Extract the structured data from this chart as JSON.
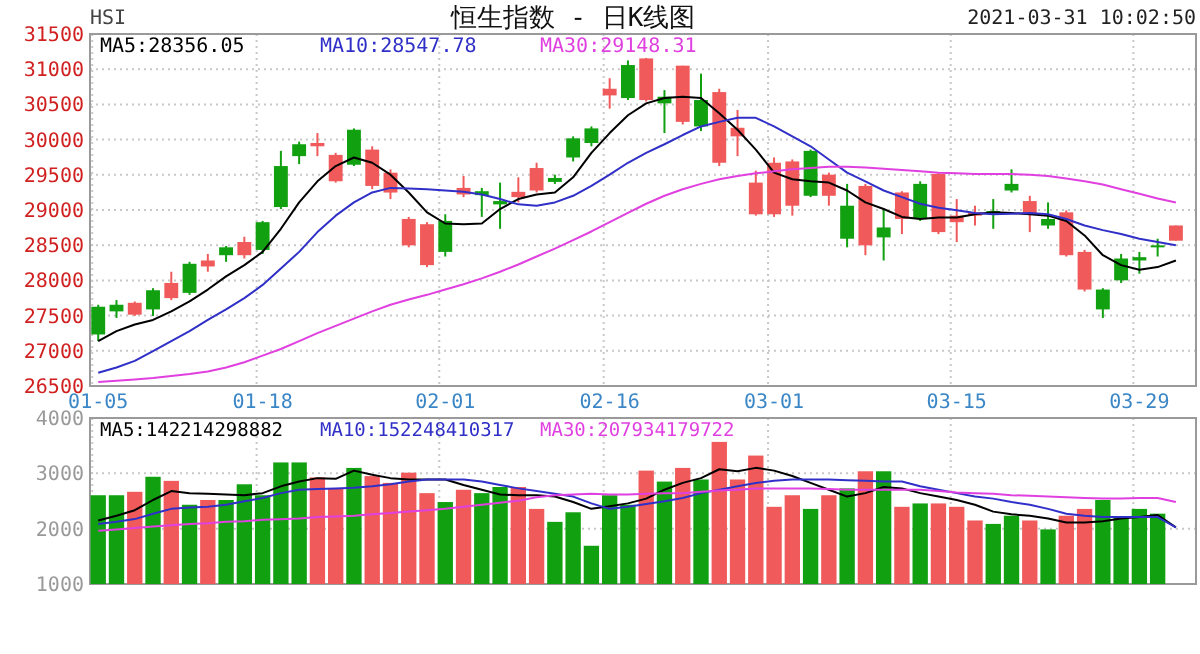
{
  "chart_data": [
    {
      "type": "candlestick",
      "title": "恒生指数 - 日K线图",
      "ylabel": "HSI",
      "annotations": [
        "2021-03-31 10:02:50"
      ],
      "categories": [
        "01-05",
        null,
        null,
        null,
        null,
        null,
        null,
        null,
        null,
        "01-18",
        null,
        null,
        null,
        null,
        null,
        null,
        null,
        null,
        null,
        "02-01",
        null,
        null,
        null,
        null,
        null,
        null,
        null,
        null,
        "02-16",
        null,
        null,
        null,
        null,
        null,
        null,
        null,
        null,
        "03-01",
        null,
        null,
        null,
        null,
        null,
        null,
        null,
        null,
        null,
        "03-15",
        null,
        null,
        null,
        null,
        null,
        null,
        null,
        null,
        null,
        "03-29",
        null,
        null
      ],
      "ylim": [
        26500,
        31500
      ],
      "yticks": [
        26500,
        27000,
        27500,
        28000,
        28500,
        29000,
        29500,
        30000,
        30500,
        31000,
        31500
      ],
      "grid": true,
      "legend": "top left",
      "marker": "none",
      "line_style": "solid",
      "ohlc": [
        [
          27626,
          27654,
          27138,
          27232
        ],
        [
          27654,
          27720,
          27467,
          27560
        ],
        [
          27513,
          27701,
          27495,
          27682
        ],
        [
          27860,
          27889,
          27495,
          27588
        ],
        [
          27748,
          28123,
          27720,
          27964
        ],
        [
          28236,
          28264,
          27795,
          27823
        ],
        [
          28198,
          28376,
          28123,
          28283
        ],
        [
          28470,
          28489,
          28264,
          28358
        ],
        [
          28358,
          28620,
          28311,
          28545
        ],
        [
          28827,
          28845,
          28376,
          28433
        ],
        [
          29624,
          29840,
          29014,
          29042
        ],
        [
          29934,
          29971,
          29652,
          29765
        ],
        [
          29905,
          30093,
          29765,
          29952
        ],
        [
          29408,
          29812,
          29389,
          29783
        ],
        [
          30140,
          30159,
          29624,
          29643
        ],
        [
          29342,
          29905,
          29296,
          29858
        ],
        [
          29248,
          29577,
          29155,
          29530
        ],
        [
          28498,
          28902,
          28470,
          28873
        ],
        [
          28217,
          28827,
          28189,
          28798
        ],
        [
          28845,
          28939,
          28339,
          28405
        ],
        [
          29221,
          29483,
          29183,
          29314
        ],
        [
          29267,
          29314,
          28902,
          29211
        ],
        [
          29127,
          29389,
          28733,
          29080
        ],
        [
          29183,
          29464,
          29108,
          29258
        ],
        [
          29277,
          29671,
          29249,
          29596
        ],
        [
          29455,
          29502,
          29370,
          29399
        ],
        [
          30018,
          30046,
          29690,
          29746
        ],
        [
          30159,
          30187,
          29905,
          29952
        ],
        [
          30628,
          30872,
          30440,
          30722
        ],
        [
          31059,
          31125,
          30562,
          30590
        ],
        [
          30562,
          31160,
          30540,
          31153
        ],
        [
          30609,
          30703,
          30093,
          30515
        ],
        [
          30252,
          31050,
          30215,
          31050
        ],
        [
          30562,
          30937,
          30121,
          30187
        ],
        [
          29671,
          30722,
          29624,
          30675
        ],
        [
          30046,
          30421,
          29765,
          30168
        ],
        [
          28939,
          29558,
          28920,
          29389
        ],
        [
          28939,
          29746,
          28902,
          29671
        ],
        [
          29061,
          29718,
          28920,
          29690
        ],
        [
          29840,
          29858,
          29183,
          29202
        ],
        [
          29202,
          29530,
          29061,
          29502
        ],
        [
          29061,
          29371,
          28470,
          28592
        ],
        [
          28498,
          29371,
          28358,
          29342
        ],
        [
          28752,
          29014,
          28283,
          28611
        ],
        [
          28873,
          29267,
          28658,
          29249
        ],
        [
          29371,
          29408,
          28845,
          28873
        ],
        [
          28686,
          29530,
          28658,
          29511
        ],
        [
          28827,
          29155,
          28545,
          28920
        ],
        [
          28920,
          29061,
          28780,
          28967
        ],
        [
          28986,
          29155,
          28733,
          28939
        ],
        [
          29371,
          29577,
          29249,
          29277
        ],
        [
          28939,
          29202,
          28686,
          29127
        ],
        [
          28873,
          29108,
          28733,
          28780
        ],
        [
          28358,
          28995,
          28339,
          28967
        ],
        [
          27870,
          28433,
          27842,
          28405
        ],
        [
          27870,
          27889,
          27467,
          27588
        ],
        [
          28311,
          28376,
          27964,
          28001
        ],
        [
          28330,
          28405,
          28095,
          28283
        ],
        [
          28498,
          28592,
          28339,
          28470
        ],
        [
          28564,
          28780,
          28564,
          28780
        ]
      ],
      "colors": [
        "#10a010",
        "#10a010",
        "#f05a5a",
        "#10a010",
        "#f05a5a",
        "#10a010",
        "#f05a5a",
        "#10a010",
        "#f05a5a",
        "#10a010",
        "#10a010",
        "#10a010",
        "#f05a5a",
        "#f05a5a",
        "#10a010",
        "#f05a5a",
        "#f05a5a",
        "#f05a5a",
        "#f05a5a",
        "#10a010",
        "#f05a5a",
        "#10a010",
        "#10a010",
        "#f05a5a",
        "#f05a5a",
        "#10a010",
        "#10a010",
        "#10a010",
        "#f05a5a",
        "#10a010",
        "#f05a5a",
        "#10a010",
        "#f05a5a",
        "#10a010",
        "#f05a5a",
        "#f05a5a",
        "#f05a5a",
        "#f05a5a",
        "#f05a5a",
        "#10a010",
        "#f05a5a",
        "#10a010",
        "#f05a5a",
        "#10a010",
        "#f05a5a",
        "#10a010",
        "#f05a5a",
        "#f05a5a",
        "#f05a5a",
        "#10a010",
        "#10a010",
        "#f05a5a",
        "#10a010",
        "#f05a5a",
        "#f05a5a",
        "#10a010",
        "#10a010",
        "#10a010",
        "#10a010",
        "#f05a5a"
      ],
      "series": [
        {
          "type": "line",
          "name": "MA5:28356.05",
          "color": "#000000",
          "values": [
            27138,
            27279,
            27373,
            27438,
            27560,
            27701,
            27870,
            28057,
            28217,
            28405,
            28733,
            29108,
            29408,
            29624,
            29746,
            29671,
            29502,
            29249,
            28967,
            28808,
            28798,
            28808,
            29014,
            29155,
            29221,
            29249,
            29464,
            29812,
            30093,
            30346,
            30515,
            30590,
            30609,
            30590,
            30374,
            30140,
            29858,
            29530,
            29436,
            29408,
            29389,
            29277,
            29108,
            29014,
            28902,
            28873,
            28892,
            28892,
            28939,
            28967,
            28958,
            28939,
            28920,
            28845,
            28639,
            28358,
            28217,
            28151,
            28189,
            28283
          ]
        },
        {
          "type": "line",
          "name": "MA10:28547.78",
          "color": "#3030c8",
          "values": [
            26688,
            26763,
            26857,
            26997,
            27138,
            27279,
            27438,
            27588,
            27748,
            27936,
            28170,
            28405,
            28686,
            28920,
            29108,
            29249,
            29314,
            29305,
            29295,
            29277,
            29258,
            29221,
            29155,
            29080,
            29061,
            29108,
            29202,
            29342,
            29502,
            29671,
            29812,
            29934,
            30065,
            30187,
            30252,
            30309,
            30309,
            30187,
            30046,
            29905,
            29718,
            29530,
            29408,
            29277,
            29183,
            29089,
            29033,
            28995,
            28958,
            28939,
            28948,
            28958,
            28939,
            28873,
            28780,
            28714,
            28658,
            28592,
            28545,
            28498
          ]
        },
        {
          "type": "line",
          "name": "MA30:29148.31",
          "color": "#e040e0",
          "values": [
            26557,
            26575,
            26594,
            26613,
            26641,
            26669,
            26707,
            26763,
            26838,
            26932,
            27026,
            27138,
            27251,
            27354,
            27457,
            27560,
            27654,
            27729,
            27795,
            27870,
            27945,
            28029,
            28123,
            28226,
            28339,
            28451,
            28573,
            28695,
            28827,
            28958,
            29089,
            29202,
            29295,
            29371,
            29436,
            29483,
            29521,
            29549,
            29578,
            29596,
            29615,
            29615,
            29605,
            29586,
            29568,
            29549,
            29530,
            29521,
            29511,
            29511,
            29511,
            29502,
            29483,
            29446,
            29408,
            29361,
            29295,
            29230,
            29164,
            29108
          ]
        }
      ]
    },
    {
      "type": "bar",
      "tick_labels": "y",
      "categories": [
        null,
        null,
        null,
        null,
        null,
        null,
        null,
        null,
        null,
        null,
        null,
        null,
        null,
        null,
        null,
        null,
        null,
        null,
        null,
        null,
        null,
        null,
        null,
        null,
        null,
        null,
        null,
        null,
        null,
        null,
        null,
        null,
        null,
        null,
        null,
        null,
        null,
        null,
        null,
        null,
        null,
        null,
        null,
        null,
        null,
        null,
        null,
        null,
        null,
        null,
        null,
        null,
        null,
        null,
        null,
        null,
        null,
        null,
        null,
        null
      ],
      "ylim": [
        1000,
        4000
      ],
      "yticks": [
        1000,
        2000,
        3000,
        4000
      ],
      "grid": true,
      "legend": "top left",
      "marker": "none",
      "line_style": "solid",
      "series": [
        {
          "type": "bar",
          "values": [
            2604,
            2604,
            2666,
            2938,
            2864,
            2432,
            2518,
            2518,
            2802,
            2604,
            3197,
            3197,
            2926,
            2728,
            3098,
            2950,
            2827,
            3012,
            2642,
            2481,
            2703,
            2642,
            2753,
            2753,
            2357,
            2123,
            2296,
            1691,
            2604,
            2432,
            3049,
            2851,
            3098,
            2889,
            3568,
            2889,
            3321,
            2395,
            2604,
            2357,
            2604,
            2728,
            3037,
            3037,
            2395,
            2456,
            2456,
            2395,
            2148,
            2086,
            2234,
            2148,
            1987,
            2234,
            2357,
            2518,
            2209,
            2357,
            2271,
            null
          ],
          "colors": [
            "#10a010",
            "#10a010",
            "#f05a5a",
            "#10a010",
            "#f05a5a",
            "#10a010",
            "#f05a5a",
            "#10a010",
            "#10a010",
            "#10a010",
            "#10a010",
            "#10a010",
            "#f05a5a",
            "#f05a5a",
            "#10a010",
            "#f05a5a",
            "#f05a5a",
            "#f05a5a",
            "#f05a5a",
            "#10a010",
            "#f05a5a",
            "#10a010",
            "#10a010",
            "#f05a5a",
            "#f05a5a",
            "#10a010",
            "#10a010",
            "#10a010",
            "#10a010",
            "#10a010",
            "#f05a5a",
            "#10a010",
            "#f05a5a",
            "#10a010",
            "#f05a5a",
            "#f05a5a",
            "#f05a5a",
            "#f05a5a",
            "#f05a5a",
            "#10a010",
            "#f05a5a",
            "#10a010",
            "#f05a5a",
            "#10a010",
            "#f05a5a",
            "#10a010",
            "#f05a5a",
            "#f05a5a",
            "#f05a5a",
            "#10a010",
            "#10a010",
            "#f05a5a",
            "#10a010",
            "#f05a5a",
            "#f05a5a",
            "#10a010",
            "#10a010",
            "#10a010",
            "#10a010",
            null
          ]
        },
        {
          "type": "line",
          "name": "MA5:142214298882",
          "color": "#000000",
          "values": [
            2148,
            2234,
            2333,
            2518,
            2679,
            2642,
            2629,
            2617,
            2605,
            2642,
            2765,
            2852,
            2913,
            2901,
            3049,
            2975,
            2913,
            2889,
            2889,
            2889,
            2790,
            2704,
            2617,
            2605,
            2605,
            2580,
            2481,
            2358,
            2407,
            2457,
            2543,
            2704,
            2827,
            2913,
            3074,
            3037,
            3099,
            3049,
            2951,
            2827,
            2704,
            2580,
            2642,
            2753,
            2728,
            2642,
            2580,
            2518,
            2432,
            2308,
            2259,
            2234,
            2185,
            2111,
            2111,
            2135,
            2185,
            2210,
            2247,
            2024
          ]
        },
        {
          "type": "line",
          "name": "MA10:152248410317",
          "color": "#3030c8",
          "values": [
            2086,
            2123,
            2173,
            2271,
            2358,
            2382,
            2395,
            2432,
            2494,
            2555,
            2642,
            2704,
            2716,
            2728,
            2741,
            2765,
            2802,
            2852,
            2889,
            2889,
            2889,
            2852,
            2790,
            2728,
            2679,
            2630,
            2580,
            2457,
            2358,
            2395,
            2444,
            2494,
            2555,
            2642,
            2704,
            2765,
            2827,
            2864,
            2889,
            2889,
            2889,
            2876,
            2864,
            2852,
            2852,
            2765,
            2704,
            2642,
            2580,
            2543,
            2481,
            2432,
            2358,
            2271,
            2234,
            2210,
            2210,
            2210,
            2210,
            2024
          ]
        },
        {
          "type": "line",
          "name": "MA30:207934179722",
          "color": "#e040e0",
          "values": [
            1963,
            1987,
            2012,
            2037,
            2061,
            2086,
            2098,
            2123,
            2135,
            2160,
            2172,
            2185,
            2209,
            2222,
            2234,
            2259,
            2284,
            2309,
            2333,
            2358,
            2395,
            2432,
            2469,
            2506,
            2568,
            2605,
            2617,
            2630,
            2617,
            2617,
            2630,
            2642,
            2642,
            2667,
            2691,
            2704,
            2728,
            2728,
            2728,
            2728,
            2716,
            2704,
            2704,
            2704,
            2704,
            2704,
            2679,
            2654,
            2642,
            2630,
            2605,
            2593,
            2580,
            2568,
            2556,
            2543,
            2543,
            2556,
            2556,
            2481
          ]
        }
      ]
    }
  ]
}
